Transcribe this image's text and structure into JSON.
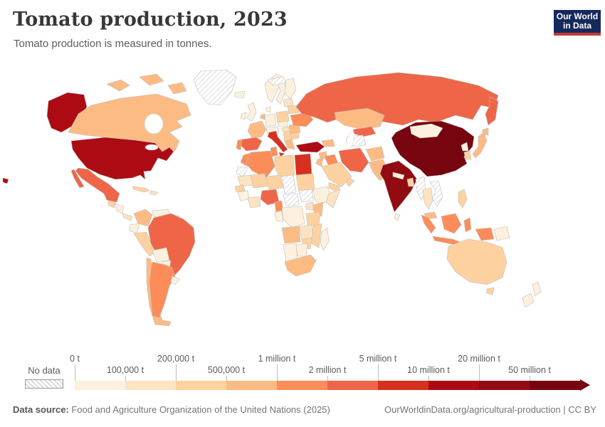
{
  "chart_data": {
    "type": "heatmap",
    "subtype": "world-choropleth-map",
    "title": "Tomato production, 2023",
    "subtitle": "Tomato production is measured in tonnes.",
    "unit": "tonnes",
    "no_data_label": "No data",
    "legend_position": "bottom",
    "bins": {
      "threshold_labels": [
        "0 t",
        "100,000 t",
        "200,000 t",
        "500,000 t",
        "1 million t",
        "2 million t",
        "5 million t",
        "10 million t",
        "20 million t",
        "50 million t"
      ],
      "colors": [
        "#fdf0dd",
        "#fce3c2",
        "#fdd2a0",
        "#fdbb84",
        "#fc8d59",
        "#ef6548",
        "#d7301f",
        "#ad0b13",
        "#920a12",
        "#76050f"
      ]
    },
    "country_bands": {
      "usa": 7,
      "canada": 3,
      "greenland": "no-data",
      "mexico": 5,
      "cuba": 2,
      "hispaniola": 1,
      "guatemala": 2,
      "honduras-nicaragua": 0,
      "costa-rica-panama": 1,
      "colombia": 3,
      "venezuela": 0,
      "guyanas": 0,
      "ecuador": 0,
      "peru": 2,
      "brazil": 5,
      "bolivia": 0,
      "paraguay": 0,
      "chile": 3,
      "argentina": 4,
      "uruguay": 0,
      "iceland": 0,
      "united-kingdom": 0,
      "ireland": 0,
      "norway": 0,
      "sweden": 0,
      "finland": 0,
      "denmark": 0,
      "germany": 0,
      "france": 3,
      "spain": 5,
      "portugal": 4,
      "italy": 6,
      "alpine-states": 0,
      "benelux": 3,
      "poland": 2,
      "czechia-slovakia": 0,
      "hungary": 1,
      "balkans": 2,
      "greece": 3,
      "romania": 3,
      "bulgaria": 2,
      "ukraine": 4,
      "belarus": 2,
      "baltics": 1,
      "russia": 5,
      "svalbard": "no-data",
      "turkey": 7,
      "syria": 3,
      "iraq": 4,
      "saudi-arabia": 2,
      "yemen": 2,
      "oman": 2,
      "israel-jordan": 3,
      "caucasus": 3,
      "iran": 5,
      "kazakhstan": 3,
      "uzbekistan": 5,
      "turkmenistan": "no-data",
      "afghanistan": 3,
      "pakistan": 3,
      "india": 8,
      "sri-lanka": 0,
      "nepal": 0,
      "bangladesh": 2,
      "china": 9,
      "mongolia": 0,
      "north-korea": 0,
      "south-korea": 2,
      "japan": 3,
      "myanmar": "no-data",
      "thailand": 1,
      "laos-vietnam-cambodia": "no-data",
      "malaysia": 3,
      "philippines": 2,
      "indonesia": 4,
      "papua-new-guinea": 0,
      "morocco": 4,
      "western-sahara": "no-data",
      "algeria": 4,
      "tunisia": 4,
      "libya": 2,
      "egypt": 6,
      "mauritania": 1,
      "mali": 2,
      "niger": 2,
      "chad": "no-data",
      "sudan": 2,
      "senegal": 2,
      "guinea-region": 0,
      "ivory-coast-ghana": 1,
      "nigeria": 5,
      "cameroon": 4,
      "central-african-republic": "no-data",
      "south-sudan": "no-data",
      "ethiopia": 0,
      "somalia": 1,
      "kenya": 3,
      "uganda": 1,
      "dr-congo": 0,
      "gabon-congo": 0,
      "tanzania": 2,
      "angola": 3,
      "zambia": 1,
      "mozambique": 2,
      "zimbabwe": 2,
      "namibia": 0,
      "botswana": 0,
      "south-africa": 3,
      "madagascar": 0,
      "australia": 2,
      "new-zealand": 0
    }
  },
  "logo": {
    "line1": "Our World",
    "line2": "in Data",
    "bg": "#16295c",
    "accent": "#c43a32"
  },
  "footer": {
    "source_label": "Data source:",
    "source_text": " Food and Agriculture Organization of the United Nations (2025)",
    "link_text": "OurWorldinData.org/agricultural-production",
    "license_text": " | CC BY"
  }
}
